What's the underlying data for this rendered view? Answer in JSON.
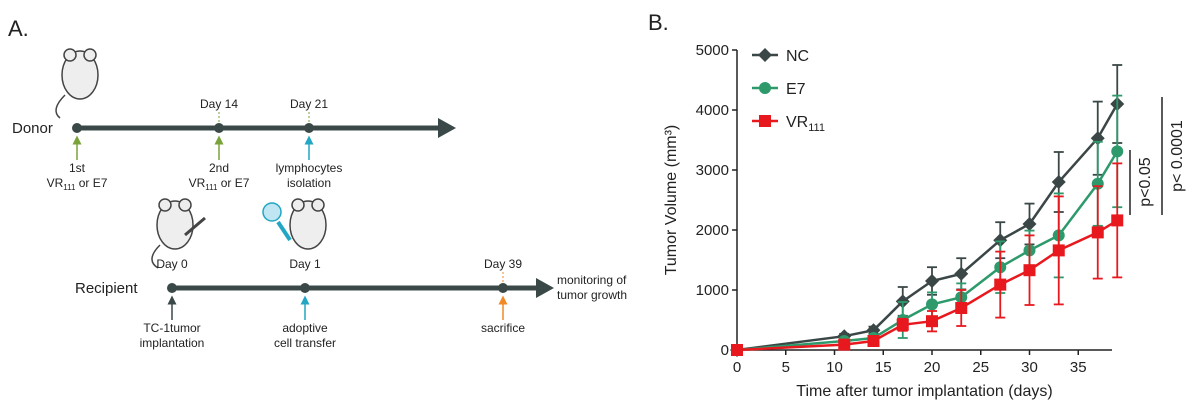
{
  "panel_a": {
    "label": "A.",
    "donor_label": "Donor",
    "donor_days": [
      "Day 14",
      "Day 21"
    ],
    "donor_steps": [
      {
        "line1": "1st",
        "main": "VR",
        "sub": "111",
        "rest": " or E7"
      },
      {
        "line1": "2nd",
        "main": "VR",
        "sub": "111",
        "rest": " or E7"
      },
      {
        "line1": "lymphocytes",
        "line2": "isolation"
      }
    ],
    "recipient_label": "Recipient",
    "recipient_days": [
      "Day 0",
      "Day 1",
      "Day 39"
    ],
    "recipient_end": [
      "monitoring of",
      "tumor growth"
    ],
    "recipient_steps": [
      [
        "TC-1tumor",
        "implantation"
      ],
      [
        "adoptive",
        "cell transfer"
      ],
      [
        "sacrifice"
      ]
    ]
  },
  "chart_data": {
    "type": "line",
    "panel_label": "B.",
    "x_label": "Time after tumor implantation (days)",
    "y_label": "Tumor Volume (mm³)",
    "x": [
      0,
      11,
      14,
      17,
      20,
      23,
      27,
      30,
      33,
      37,
      39
    ],
    "series": [
      {
        "name": "NC",
        "marker": "diamond",
        "color": "#3b4747",
        "values": [
          0,
          230,
          330,
          810,
          1150,
          1270,
          1830,
          2100,
          2800,
          3530,
          4100
        ],
        "errors": [
          0,
          40,
          60,
          240,
          230,
          260,
          300,
          340,
          500,
          610,
          650
        ]
      },
      {
        "name": "E7",
        "marker": "circle",
        "color": "#2e9a6c",
        "values": [
          0,
          150,
          200,
          500,
          760,
          880,
          1380,
          1660,
          1910,
          2770,
          3310
        ],
        "errors": [
          0,
          30,
          50,
          300,
          200,
          230,
          430,
          330,
          700,
          700,
          930
        ]
      },
      {
        "name": "VR",
        "name_sub": "111",
        "marker": "square",
        "color": "#e8191e",
        "values": [
          0,
          90,
          150,
          420,
          480,
          700,
          1090,
          1330,
          1660,
          1960,
          2160
        ],
        "errors": [
          0,
          30,
          50,
          100,
          170,
          300,
          550,
          580,
          900,
          770,
          950
        ]
      }
    ],
    "xlim": [
      0,
      40
    ],
    "ylim": [
      0,
      5000
    ],
    "xticks": [
      0,
      5,
      10,
      15,
      20,
      25,
      30,
      35
    ],
    "yticks": [
      0,
      1000,
      2000,
      3000,
      4000,
      5000
    ],
    "annotations": [
      "p<0.05",
      "p< 0.0001"
    ]
  }
}
